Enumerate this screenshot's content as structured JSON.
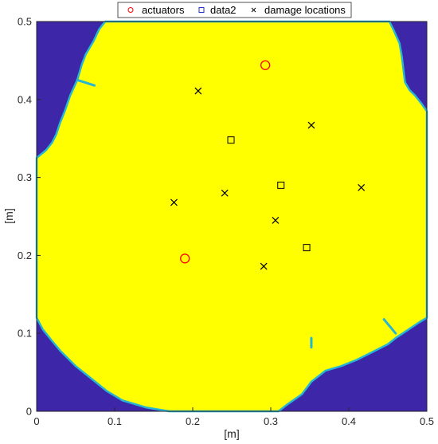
{
  "chart_data": {
    "type": "scatter",
    "title": "",
    "xlabel": "[m]",
    "ylabel": "[m]",
    "xlim": [
      0,
      0.5
    ],
    "ylim": [
      0,
      0.5
    ],
    "x_ticks": [
      "0",
      "0.1",
      "0.2",
      "0.3",
      "0.4",
      "0.5"
    ],
    "y_ticks": [
      "0",
      "0.1",
      "0.2",
      "0.3",
      "0.4",
      "0.5"
    ],
    "grid": false,
    "legend": "top-center",
    "background": {
      "type": "binary-region-map",
      "inside_color": "#FFFF00",
      "outside_color": "#3E26A8",
      "edge_color": "#27B5D4"
    },
    "series": [
      {
        "name": "actuators",
        "marker": "circle",
        "color": "#FF0000",
        "x": [
          0.293,
          0.19
        ],
        "y": [
          0.444,
          0.196
        ]
      },
      {
        "name": "data2",
        "marker": "square",
        "color": "#000000",
        "x": [
          0.249,
          0.313,
          0.346
        ],
        "y": [
          0.348,
          0.29,
          0.21
        ]
      },
      {
        "name": "damage locations",
        "marker": "x",
        "color": "#000000",
        "x": [
          0.207,
          0.352,
          0.416,
          0.176,
          0.241,
          0.306,
          0.291
        ],
        "y": [
          0.411,
          0.367,
          0.287,
          0.268,
          0.28,
          0.245,
          0.186
        ]
      }
    ]
  }
}
